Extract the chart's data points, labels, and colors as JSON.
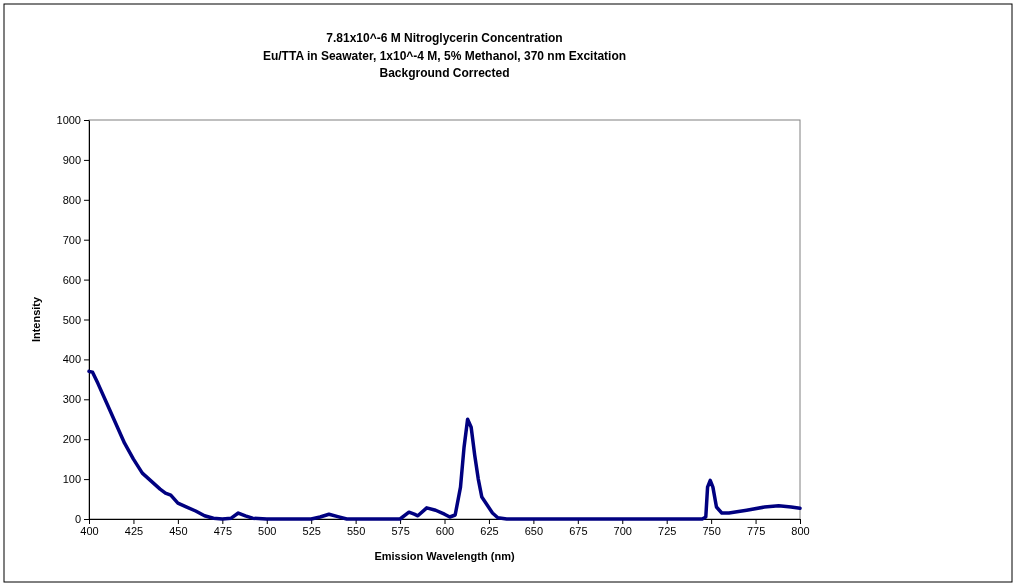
{
  "chart_data": {
    "type": "line",
    "title": "7.81x10^-6 M Nitroglycerin Concentration",
    "subtitle": "Eu/TTA in Seawater, 1x10^-4 M, 5% Methanol, 370 nm Excitation\nBackground Corrected",
    "xlabel": "Emission Wavelength (nm)",
    "ylabel": "Intensity",
    "x": [
      400,
      402,
      405,
      410,
      415,
      420,
      425,
      430,
      435,
      440,
      443,
      446,
      450,
      455,
      460,
      465,
      470,
      475,
      480,
      484,
      488,
      492,
      500,
      525,
      530,
      535,
      540,
      545,
      575,
      580,
      583,
      585,
      590,
      595,
      600,
      603,
      606,
      609,
      611,
      613,
      615,
      617,
      619,
      621,
      624,
      627,
      630,
      635,
      700,
      745,
      747,
      748,
      749.5,
      751,
      753,
      756,
      760,
      770,
      780,
      788,
      795,
      800
    ],
    "series": [
      {
        "color": "#000080",
        "values": [
          370,
          368,
          340,
          290,
          240,
          190,
          150,
          115,
          95,
          75,
          65,
          60,
          40,
          30,
          20,
          8,
          2,
          0,
          2,
          15,
          8,
          2,
          0,
          0,
          5,
          12,
          6,
          0,
          0,
          17,
          12,
          8,
          28,
          22,
          12,
          5,
          10,
          80,
          180,
          250,
          230,
          160,
          100,
          55,
          35,
          15,
          3,
          0,
          0,
          0,
          5,
          80,
          97,
          80,
          30,
          15,
          15,
          22,
          30,
          33,
          30,
          27
        ]
      }
    ],
    "xlim": [
      400,
      800
    ],
    "xticks": [
      400,
      425,
      450,
      475,
      500,
      525,
      550,
      575,
      600,
      625,
      650,
      675,
      700,
      725,
      750,
      775,
      800
    ],
    "ylim": [
      0,
      1000
    ],
    "yticks": [
      0,
      100,
      200,
      300,
      400,
      500,
      600,
      700,
      800,
      900,
      1000
    ],
    "grid": false,
    "marker": "none",
    "line_style": "solid"
  }
}
